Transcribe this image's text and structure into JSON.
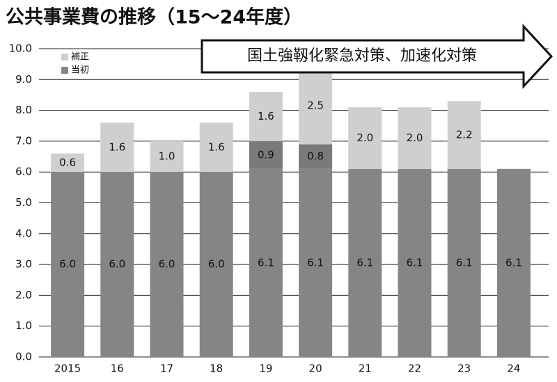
{
  "chart_data": {
    "type": "stacked_bar",
    "title": "公共事業費の推移（15～24年度）",
    "annotation": "国土強靱化緊急対策、加速化対策",
    "categories": [
      "2015",
      "16",
      "17",
      "18",
      "19",
      "20",
      "21",
      "22",
      "23",
      "24"
    ],
    "series": [
      {
        "name": "当初",
        "color": "#858585",
        "values": [
          6.0,
          6.0,
          6.0,
          6.0,
          6.1,
          6.1,
          6.1,
          6.1,
          6.1,
          6.1
        ],
        "value_labels": [
          "6.0",
          "6.0",
          "6.0",
          "6.0",
          "6.1",
          "6.1",
          "6.1",
          "6.1",
          "6.1",
          "6.1"
        ]
      },
      {
        "color": "#7a7a7a",
        "values": [
          null,
          null,
          null,
          null,
          0.9,
          0.8,
          null,
          null,
          null,
          null
        ],
        "value_labels": [
          null,
          null,
          null,
          null,
          "0.9",
          "0.8",
          null,
          null,
          null,
          null
        ]
      },
      {
        "name": "補正",
        "color": "#cfcfcf",
        "values": [
          0.6,
          1.6,
          1.0,
          1.6,
          1.6,
          2.5,
          2.0,
          2.0,
          2.2,
          null
        ],
        "value_labels": [
          "0.6",
          "1.6",
          "1.0",
          "1.6",
          "1.6",
          "2.5",
          "2.0",
          "2.0",
          "2.2",
          null
        ]
      }
    ],
    "ylim": [
      0,
      10
    ],
    "yticks": [
      {
        "value": 0,
        "label": "0.0"
      },
      {
        "value": 1,
        "label": "1.0"
      },
      {
        "value": 2,
        "label": "2.0"
      },
      {
        "value": 3,
        "label": "3.0"
      },
      {
        "value": 4,
        "label": "4.0"
      },
      {
        "value": 5,
        "label": "5.0"
      },
      {
        "value": 6,
        "label": "6.0"
      },
      {
        "value": 7,
        "label": "7.0"
      },
      {
        "value": 8,
        "label": "8.0"
      },
      {
        "value": 9,
        "label": "9.0"
      },
      {
        "value": 10,
        "label": "10.0"
      }
    ],
    "grid": true
  }
}
